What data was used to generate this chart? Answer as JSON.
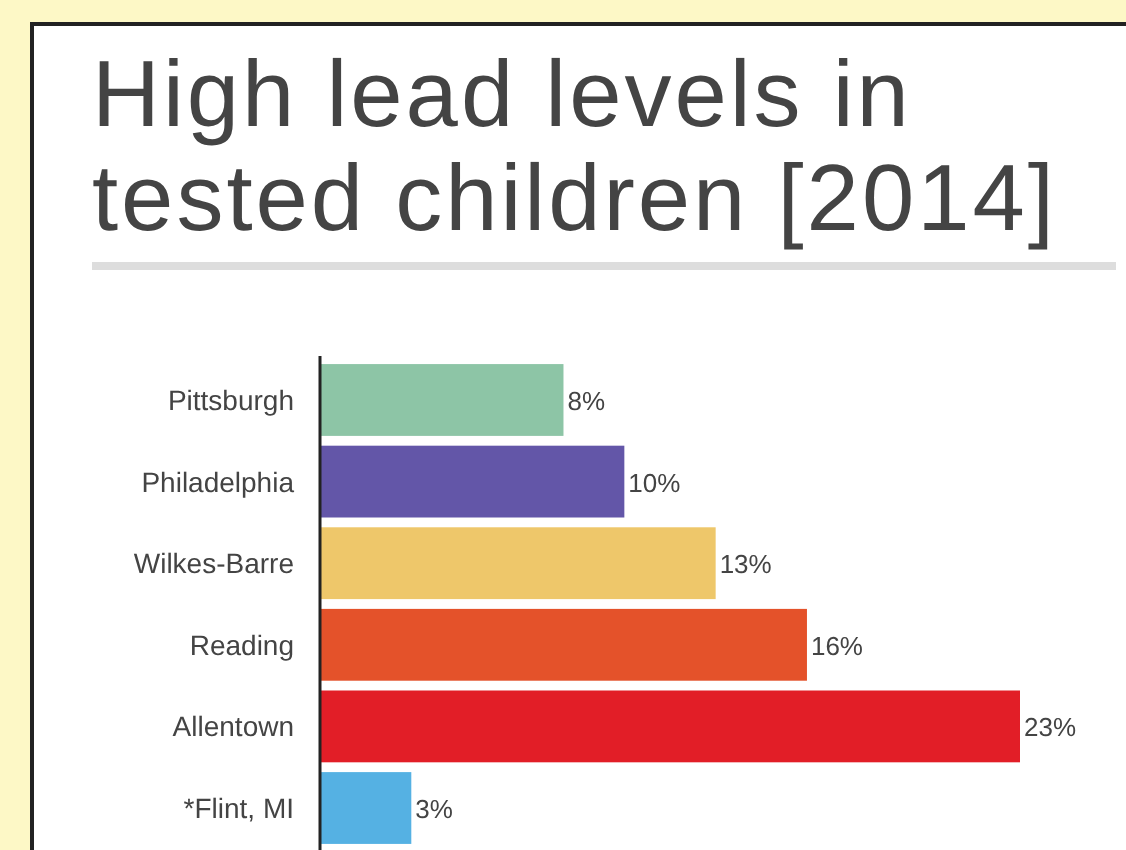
{
  "chart_data": {
    "type": "bar",
    "orientation": "horizontal",
    "title": "High lead levels in tested children [2014]",
    "categories": [
      "Pittsburgh",
      "Philadelphia",
      "Wilkes-Barre",
      "Reading",
      "Allentown",
      "*Flint, MI"
    ],
    "values": [
      8,
      10,
      13,
      16,
      23,
      3
    ],
    "colors": [
      "#8dc5a6",
      "#6356a8",
      "#eec76a",
      "#e4522a",
      "#e21e27",
      "#55b1e3"
    ],
    "value_labels": [
      "8%",
      "10%",
      "13%",
      "16%",
      "23%",
      "3%"
    ]
  }
}
